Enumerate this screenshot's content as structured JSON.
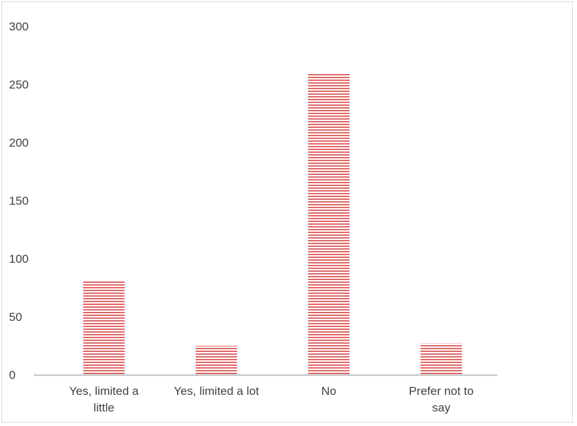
{
  "chart_data": {
    "type": "bar",
    "categories": [
      [
        "Yes, limited a",
        "little"
      ],
      [
        "Yes, limited a lot"
      ],
      [
        "No"
      ],
      [
        "Prefer not to",
        "say"
      ]
    ],
    "values": [
      81,
      25,
      259,
      27
    ],
    "ylim": [
      0,
      300
    ],
    "yticks": [
      0,
      50,
      100,
      150,
      200,
      250,
      300
    ],
    "grid": false,
    "legend": "none",
    "colors": {
      "bar_stripe": "#e06666",
      "bar_fill": "#ffffff",
      "axis": "#bfbfbf",
      "text": "#404040",
      "border": "#d9d9d9"
    }
  }
}
